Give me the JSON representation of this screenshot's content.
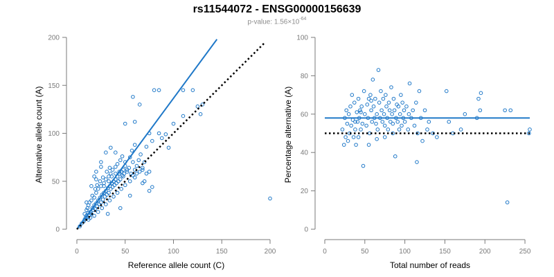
{
  "title": "rs11544072 - ENSG00000156639",
  "pvalue": {
    "label": "p-value: 1.56×10",
    "exponent": "-64"
  },
  "colors": {
    "points": "#1f78c8",
    "regression": "#1f78c8",
    "reference_line": "#000000",
    "axis": "#7a7a7a"
  },
  "chart_data": [
    {
      "type": "scatter",
      "xlabel": "Reference allele count (C)",
      "ylabel": "Alternative allele count (A)",
      "xlim": [
        0,
        200
      ],
      "ylim": [
        0,
        200
      ],
      "xticks": [
        0,
        50,
        100,
        150,
        200
      ],
      "yticks": [
        0,
        50,
        100,
        150,
        200
      ],
      "grid": false,
      "regression_line": {
        "from": [
          0,
          0
        ],
        "to": [
          145,
          198
        ]
      },
      "reference_line": {
        "from": [
          0,
          0
        ],
        "to": [
          195,
          195
        ],
        "style": "dotted"
      },
      "points": [
        [
          3,
          3
        ],
        [
          5,
          6
        ],
        [
          7,
          8
        ],
        [
          8,
          10
        ],
        [
          9,
          12
        ],
        [
          10,
          14
        ],
        [
          11,
          12
        ],
        [
          12,
          17
        ],
        [
          13,
          15
        ],
        [
          14,
          18
        ],
        [
          15,
          16
        ],
        [
          16,
          22
        ],
        [
          17,
          20
        ],
        [
          18,
          25
        ],
        [
          19,
          21
        ],
        [
          20,
          27
        ],
        [
          21,
          24
        ],
        [
          22,
          30
        ],
        [
          23,
          26
        ],
        [
          24,
          33
        ],
        [
          25,
          28
        ],
        [
          26,
          36
        ],
        [
          27,
          31
        ],
        [
          28,
          38
        ],
        [
          29,
          34
        ],
        [
          30,
          40
        ],
        [
          31,
          36
        ],
        [
          32,
          43
        ],
        [
          33,
          38
        ],
        [
          34,
          45
        ],
        [
          35,
          42
        ],
        [
          36,
          48
        ],
        [
          37,
          44
        ],
        [
          38,
          50
        ],
        [
          39,
          46
        ],
        [
          40,
          52
        ],
        [
          41,
          48
        ],
        [
          42,
          55
        ],
        [
          43,
          50
        ],
        [
          44,
          58
        ],
        [
          45,
          52
        ],
        [
          46,
          60
        ],
        [
          47,
          56
        ],
        [
          48,
          62
        ],
        [
          49,
          58
        ],
        [
          50,
          66
        ],
        [
          52,
          60
        ],
        [
          54,
          64
        ],
        [
          56,
          58
        ],
        [
          58,
          70
        ],
        [
          60,
          62
        ],
        [
          62,
          66
        ],
        [
          64,
          72
        ],
        [
          66,
          78
        ],
        [
          68,
          62
        ],
        [
          70,
          70
        ],
        [
          72,
          86
        ],
        [
          75,
          60
        ],
        [
          78,
          92
        ],
        [
          85,
          100
        ],
        [
          10,
          20
        ],
        [
          12,
          25
        ],
        [
          15,
          30
        ],
        [
          18,
          33
        ],
        [
          20,
          38
        ],
        [
          22,
          42
        ],
        [
          25,
          45
        ],
        [
          28,
          48
        ],
        [
          30,
          52
        ],
        [
          33,
          55
        ],
        [
          35,
          58
        ],
        [
          37,
          62
        ],
        [
          40,
          65
        ],
        [
          42,
          68
        ],
        [
          45,
          72
        ],
        [
          47,
          76
        ],
        [
          50,
          70
        ],
        [
          55,
          75
        ],
        [
          57,
          82
        ],
        [
          60,
          88
        ],
        [
          12,
          10
        ],
        [
          14,
          12
        ],
        [
          18,
          14
        ],
        [
          22,
          18
        ],
        [
          26,
          22
        ],
        [
          30,
          26
        ],
        [
          34,
          30
        ],
        [
          38,
          34
        ],
        [
          42,
          38
        ],
        [
          46,
          42
        ],
        [
          50,
          46
        ],
        [
          55,
          50
        ],
        [
          58,
          56
        ],
        [
          62,
          58
        ],
        [
          65,
          60
        ],
        [
          68,
          48
        ],
        [
          72,
          58
        ],
        [
          10,
          28
        ],
        [
          15,
          45
        ],
        [
          20,
          52
        ],
        [
          25,
          65
        ],
        [
          30,
          80
        ],
        [
          35,
          85
        ],
        [
          40,
          80
        ],
        [
          32,
          16
        ],
        [
          45,
          22
        ],
        [
          55,
          35
        ],
        [
          60,
          54
        ],
        [
          75,
          40
        ],
        [
          78,
          44
        ],
        [
          28,
          45
        ],
        [
          33,
          50
        ],
        [
          36,
          55
        ],
        [
          40,
          58
        ],
        [
          44,
          60
        ],
        [
          48,
          55
        ],
        [
          52,
          62
        ],
        [
          20,
          60
        ],
        [
          25,
          70
        ],
        [
          18,
          55
        ],
        [
          8,
          16
        ],
        [
          11,
          22
        ],
        [
          13,
          28
        ],
        [
          16,
          35
        ],
        [
          19,
          42
        ],
        [
          21,
          46
        ],
        [
          24,
          50
        ],
        [
          27,
          54
        ],
        [
          31,
          60
        ],
        [
          34,
          64
        ],
        [
          95,
          85
        ],
        [
          100,
          110
        ],
        [
          110,
          118
        ],
        [
          80,
          145
        ],
        [
          85,
          145
        ],
        [
          58,
          138
        ],
        [
          65,
          130
        ],
        [
          70,
          50
        ],
        [
          60,
          112
        ],
        [
          110,
          145
        ],
        [
          125,
          128
        ],
        [
          128,
          120
        ],
        [
          130,
          130
        ],
        [
          120,
          145
        ],
        [
          50,
          110
        ],
        [
          200,
          32
        ],
        [
          75,
          100
        ],
        [
          88,
          95
        ],
        [
          92,
          99
        ],
        [
          68,
          64
        ]
      ]
    },
    {
      "type": "scatter",
      "xlabel": "Total number of reads",
      "ylabel": "Percentage alternative (A)",
      "xlim": [
        0,
        256
      ],
      "ylim": [
        0,
        100
      ],
      "xticks": [
        0,
        50,
        100,
        150,
        200,
        250
      ],
      "yticks": [
        0,
        20,
        40,
        60,
        80,
        100
      ],
      "grid": false,
      "mean_line": {
        "y": 58,
        "x_from": 0,
        "x_to": 256
      },
      "reference_line": {
        "y": 50,
        "x_from": 0,
        "x_to": 256,
        "style": "dotted"
      },
      "points": [
        [
          22,
          52
        ],
        [
          24,
          44
        ],
        [
          25,
          58
        ],
        [
          26,
          48
        ],
        [
          27,
          62
        ],
        [
          28,
          55
        ],
        [
          29,
          46
        ],
        [
          30,
          60
        ],
        [
          31,
          50
        ],
        [
          32,
          64
        ],
        [
          33,
          54
        ],
        [
          34,
          70
        ],
        [
          35,
          57
        ],
        [
          36,
          48
        ],
        [
          37,
          66
        ],
        [
          38,
          52
        ],
        [
          39,
          44
        ],
        [
          40,
          61
        ],
        [
          41,
          56
        ],
        [
          42,
          68
        ],
        [
          43,
          58
        ],
        [
          44,
          62
        ],
        [
          45,
          52
        ],
        [
          46,
          64
        ],
        [
          47,
          55
        ],
        [
          48,
          33
        ],
        [
          49,
          72
        ],
        [
          50,
          60
        ],
        [
          52,
          54
        ],
        [
          53,
          65
        ],
        [
          54,
          58
        ],
        [
          55,
          68
        ],
        [
          56,
          50
        ],
        [
          57,
          70
        ],
        [
          58,
          62
        ],
        [
          59,
          56
        ],
        [
          60,
          78
        ],
        [
          61,
          64
        ],
        [
          62,
          58
        ],
        [
          63,
          68
        ],
        [
          64,
          55
        ],
        [
          65,
          60
        ],
        [
          66,
          52
        ],
        [
          67,
          83
        ],
        [
          68,
          66
        ],
        [
          69,
          58
        ],
        [
          70,
          72
        ],
        [
          71,
          62
        ],
        [
          72,
          56
        ],
        [
          73,
          68
        ],
        [
          74,
          60
        ],
        [
          75,
          54
        ],
        [
          76,
          70
        ],
        [
          77,
          64
        ],
        [
          78,
          58
        ],
        [
          79,
          52
        ],
        [
          80,
          66
        ],
        [
          81,
          62
        ],
        [
          82,
          56
        ],
        [
          83,
          74
        ],
        [
          84,
          60
        ],
        [
          85,
          50
        ],
        [
          86,
          68
        ],
        [
          87,
          62
        ],
        [
          88,
          38
        ],
        [
          89,
          58
        ],
        [
          90,
          65
        ],
        [
          91,
          56
        ],
        [
          92,
          64
        ],
        [
          93,
          52
        ],
        [
          94,
          60
        ],
        [
          95,
          70
        ],
        [
          96,
          54
        ],
        [
          97,
          66
        ],
        [
          98,
          58
        ],
        [
          99,
          62
        ],
        [
          100,
          56
        ],
        [
          102,
          64
        ],
        [
          104,
          52
        ],
        [
          105,
          60
        ],
        [
          106,
          76
        ],
        [
          108,
          58
        ],
        [
          110,
          62
        ],
        [
          112,
          54
        ],
        [
          114,
          66
        ],
        [
          115,
          35
        ],
        [
          116,
          50
        ],
        [
          118,
          72
        ],
        [
          120,
          58
        ],
        [
          122,
          46
        ],
        [
          125,
          62
        ],
        [
          128,
          52
        ],
        [
          130,
          56
        ],
        [
          135,
          50
        ],
        [
          140,
          48
        ],
        [
          152,
          72
        ],
        [
          155,
          56
        ],
        [
          160,
          50
        ],
        [
          170,
          52
        ],
        [
          175,
          60
        ],
        [
          190,
          58
        ],
        [
          192,
          68
        ],
        [
          194,
          62
        ],
        [
          195,
          71
        ],
        [
          225,
          62
        ],
        [
          228,
          14
        ],
        [
          232,
          62
        ],
        [
          255,
          50
        ],
        [
          256,
          52
        ],
        [
          42,
          48
        ],
        [
          55,
          44
        ],
        [
          65,
          47
        ],
        [
          75,
          48
        ],
        [
          85,
          55
        ],
        [
          45,
          61
        ],
        [
          58,
          67
        ],
        [
          38,
          56
        ]
      ]
    }
  ]
}
